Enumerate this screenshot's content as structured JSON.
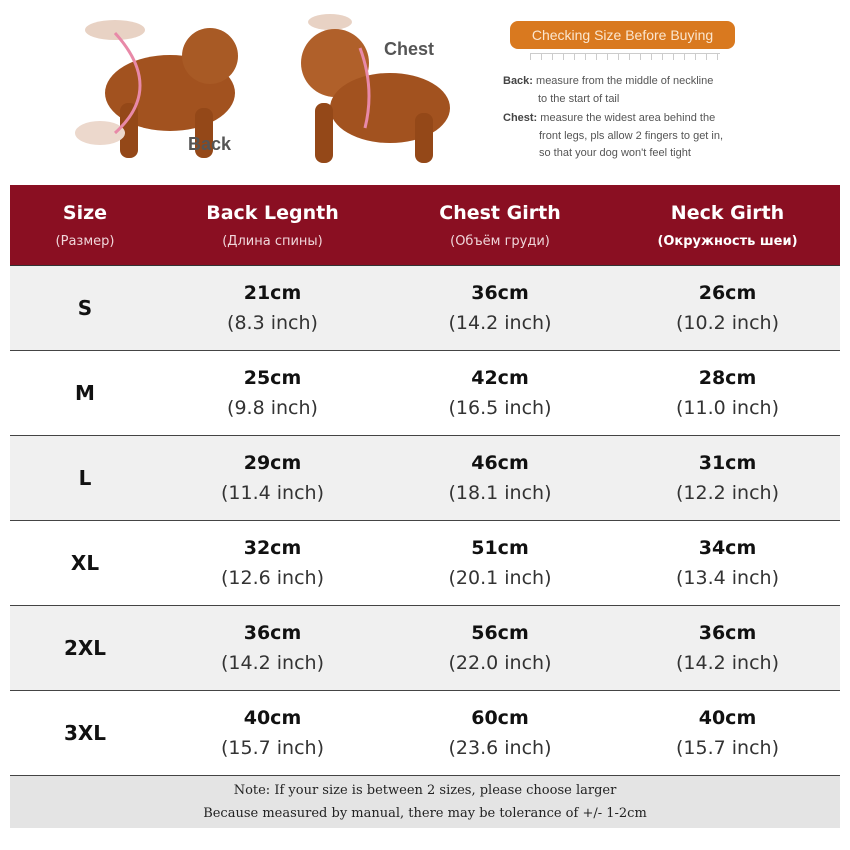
{
  "illustration": {
    "back_label": "Back",
    "chest_label": "Chest",
    "banner": "Checking Size Before Buying",
    "back_term": "Back:",
    "back_desc_1": "measure from the middle of neckline",
    "back_desc_2": "to the start of tail",
    "chest_term": "Chest:",
    "chest_desc_1": "measure the widest area behind the",
    "chest_desc_2": "front legs, pls allow 2 fingers to get in,",
    "chest_desc_3": "so that your dog won't feel tight",
    "colors": {
      "banner": "#d9791f",
      "dog": "#a2521f"
    }
  },
  "table": {
    "header_color": "#8a0f22",
    "headers": [
      {
        "title": "Size",
        "sub": "(Размер)"
      },
      {
        "title": "Back Legnth",
        "sub": "(Длина спины)"
      },
      {
        "title": "Chest Girth",
        "sub": "(Объём груди)"
      },
      {
        "title": "Neck Girth",
        "sub": "(Окружность шеи)"
      }
    ],
    "rows": [
      {
        "size": "S",
        "back": [
          "21cm",
          "(8.3 inch)"
        ],
        "chest": [
          "36cm",
          "(14.2 inch)"
        ],
        "neck": [
          "26cm",
          "(10.2 inch)"
        ]
      },
      {
        "size": "M",
        "back": [
          "25cm",
          "(9.8 inch)"
        ],
        "chest": [
          "42cm",
          "(16.5 inch)"
        ],
        "neck": [
          "28cm",
          "(11.0 inch)"
        ]
      },
      {
        "size": "L",
        "back": [
          "29cm",
          "(11.4 inch)"
        ],
        "chest": [
          "46cm",
          "(18.1 inch)"
        ],
        "neck": [
          "31cm",
          "(12.2 inch)"
        ]
      },
      {
        "size": "XL",
        "back": [
          "32cm",
          "(12.6 inch)"
        ],
        "chest": [
          "51cm",
          "(20.1 inch)"
        ],
        "neck": [
          "34cm",
          "(13.4 inch)"
        ]
      },
      {
        "size": "2XL",
        "back": [
          "36cm",
          "(14.2 inch)"
        ],
        "chest": [
          "56cm",
          "(22.0 inch)"
        ],
        "neck": [
          "36cm",
          "(14.2 inch)"
        ]
      },
      {
        "size": "3XL",
        "back": [
          "40cm",
          "(15.7 inch)"
        ],
        "chest": [
          "60cm",
          "(23.6 inch)"
        ],
        "neck": [
          "40cm",
          "(15.7 inch)"
        ]
      }
    ]
  },
  "footer": {
    "line1": "Note: If your size is between 2 sizes, please choose larger",
    "line2": "Because measured by manual, there may be tolerance of +/- 1-2cm"
  }
}
